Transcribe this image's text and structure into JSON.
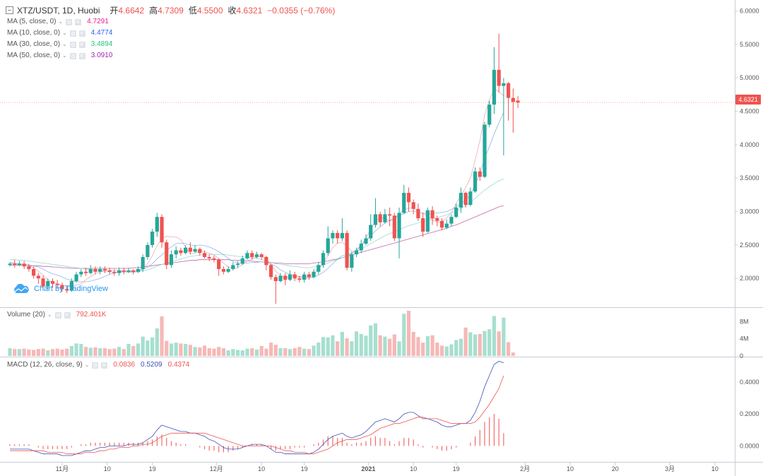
{
  "header": {
    "title": "XTZ/USDT, 1D, Huobi",
    "open_label": "开",
    "open": "4.6642",
    "high_label": "高",
    "high": "4.7309",
    "low_label": "低",
    "low": "4.5500",
    "close_label": "收",
    "close": "4.6321",
    "change": "−0.0355 (−0.76%)"
  },
  "ma_legend": [
    {
      "label": "MA (5, close, 0)",
      "value": "4.7291",
      "color": "#e91e8c"
    },
    {
      "label": "MA (10, close, 0)",
      "value": "4.4774",
      "color": "#2962ff"
    },
    {
      "label": "MA (30, close, 0)",
      "value": "3.4894",
      "color": "#26c281"
    },
    {
      "label": "MA (50, close, 0)",
      "value": "3.0910",
      "color": "#9c27b0"
    }
  ],
  "volume_legend": {
    "label": "Volume (20)",
    "value": "792.401K"
  },
  "macd_legend": {
    "label": "MACD (12, 26, close, 9)",
    "hist": "0.0836",
    "macd": "0.5209",
    "signal": "0.4374"
  },
  "brand": "Chart by TradingView",
  "last_price_tag": "4.6321",
  "colors": {
    "up": "#26a69a",
    "down": "#ef5350",
    "up_vol": "#a7dfcf",
    "down_vol": "#f6b8b6",
    "macd": "#3f51b5",
    "signal": "#ef5350",
    "last_line": "#ef5350"
  },
  "chart_data": {
    "type": "candlestick",
    "symbol": "XTZ/USDT",
    "interval": "1D",
    "exchange": "Huobi",
    "x_labels": [
      "11月",
      "10",
      "19",
      "12月",
      "10",
      "19",
      "2021",
      "10",
      "19",
      "2月",
      "10",
      "20",
      "3月",
      "10"
    ],
    "price_axis": {
      "ticks": [
        "6.0000",
        "5.5000",
        "5.0000",
        "4.5000",
        "4.0000",
        "3.5000",
        "3.0000",
        "2.5000",
        "2.0000"
      ],
      "range": [
        1.58,
        6.08
      ]
    },
    "volume_axis": {
      "ticks": [
        "8M",
        "4M",
        "0"
      ],
      "range": [
        0,
        11
      ]
    },
    "macd_axis": {
      "ticks": [
        "0.4000",
        "0.2000",
        "0.0000"
      ],
      "range": [
        -0.1,
        0.55
      ]
    },
    "candles": [
      [
        2.2,
        2.22,
        2.24,
        2.18
      ],
      [
        2.22,
        2.2,
        2.28,
        2.16
      ],
      [
        2.2,
        2.22,
        2.26,
        2.18
      ],
      [
        2.22,
        2.18,
        2.26,
        2.14
      ],
      [
        2.18,
        2.14,
        2.22,
        2.1
      ],
      [
        2.14,
        2.04,
        2.18,
        2.0
      ],
      [
        2.04,
        2.0,
        2.08,
        1.92
      ],
      [
        2.0,
        1.88,
        2.04,
        1.84
      ],
      [
        1.88,
        1.96,
        2.0,
        1.84
      ],
      [
        1.96,
        1.92,
        2.0,
        1.86
      ],
      [
        1.92,
        1.9,
        1.98,
        1.84
      ],
      [
        1.9,
        1.84,
        1.94,
        1.8
      ],
      [
        1.84,
        1.82,
        1.88,
        1.78
      ],
      [
        1.82,
        1.96,
        2.0,
        1.8
      ],
      [
        1.96,
        2.06,
        2.1,
        1.94
      ],
      [
        2.06,
        2.1,
        2.14,
        2.02
      ],
      [
        2.1,
        2.08,
        2.16,
        2.04
      ],
      [
        2.08,
        2.14,
        2.2,
        2.06
      ],
      [
        2.14,
        2.1,
        2.18,
        2.06
      ],
      [
        2.1,
        2.14,
        2.18,
        2.06
      ],
      [
        2.14,
        2.12,
        2.18,
        2.08
      ],
      [
        2.12,
        2.1,
        2.16,
        2.06
      ],
      [
        2.1,
        2.08,
        2.14,
        2.04
      ],
      [
        2.08,
        2.12,
        2.16,
        2.04
      ],
      [
        2.12,
        2.1,
        2.16,
        2.06
      ],
      [
        2.1,
        2.12,
        2.16,
        2.08
      ],
      [
        2.12,
        2.1,
        2.14,
        2.06
      ],
      [
        2.1,
        2.14,
        2.18,
        2.08
      ],
      [
        2.14,
        2.32,
        2.36,
        2.1
      ],
      [
        2.32,
        2.5,
        2.54,
        2.28
      ],
      [
        2.5,
        2.7,
        2.74,
        2.46
      ],
      [
        2.7,
        2.92,
        2.98,
        2.62
      ],
      [
        2.92,
        2.54,
        2.96,
        2.46
      ],
      [
        2.54,
        2.2,
        2.58,
        2.14
      ],
      [
        2.2,
        2.36,
        2.42,
        2.16
      ],
      [
        2.36,
        2.42,
        2.48,
        2.3
      ],
      [
        2.42,
        2.38,
        2.46,
        2.34
      ],
      [
        2.38,
        2.46,
        2.5,
        2.36
      ],
      [
        2.46,
        2.4,
        2.54,
        2.36
      ],
      [
        2.4,
        2.44,
        2.5,
        2.38
      ],
      [
        2.44,
        2.38,
        2.46,
        2.34
      ],
      [
        2.38,
        2.32,
        2.42,
        2.3
      ],
      [
        2.32,
        2.3,
        2.36,
        2.26
      ],
      [
        2.3,
        2.28,
        2.34,
        2.24
      ],
      [
        2.28,
        2.14,
        2.3,
        2.04
      ],
      [
        2.14,
        2.1,
        2.18,
        2.06
      ],
      [
        2.1,
        2.14,
        2.18,
        2.08
      ],
      [
        2.14,
        2.2,
        2.24,
        2.12
      ],
      [
        2.2,
        2.22,
        2.26,
        2.16
      ],
      [
        2.22,
        2.3,
        2.34,
        2.2
      ],
      [
        2.3,
        2.38,
        2.42,
        2.28
      ],
      [
        2.38,
        2.32,
        2.42,
        2.28
      ],
      [
        2.32,
        2.36,
        2.4,
        2.3
      ],
      [
        2.36,
        2.32,
        2.38,
        2.28
      ],
      [
        2.32,
        2.2,
        2.34,
        2.12
      ],
      [
        2.2,
        2.02,
        2.22,
        1.98
      ],
      [
        2.02,
        1.96,
        2.06,
        1.62
      ],
      [
        1.96,
        2.04,
        2.08,
        1.94
      ],
      [
        2.04,
        1.98,
        2.08,
        1.9
      ],
      [
        1.98,
        2.06,
        2.12,
        1.96
      ],
      [
        2.06,
        2.0,
        2.1,
        1.96
      ],
      [
        2.0,
        1.98,
        2.04,
        1.94
      ],
      [
        1.98,
        2.06,
        2.1,
        1.94
      ],
      [
        2.06,
        2.02,
        2.1,
        1.98
      ],
      [
        2.02,
        2.1,
        2.14,
        2.0
      ],
      [
        2.1,
        2.2,
        2.24,
        2.06
      ],
      [
        2.2,
        2.38,
        2.42,
        2.16
      ],
      [
        2.38,
        2.6,
        2.78,
        2.34
      ],
      [
        2.6,
        2.68,
        2.72,
        2.52
      ],
      [
        2.68,
        2.6,
        2.72,
        2.52
      ],
      [
        2.6,
        2.68,
        2.9,
        2.56
      ],
      [
        2.68,
        2.16,
        2.72,
        2.12
      ],
      [
        2.16,
        2.36,
        2.4,
        2.1
      ],
      [
        2.36,
        2.42,
        2.46,
        2.32
      ],
      [
        2.42,
        2.52,
        2.58,
        2.38
      ],
      [
        2.52,
        2.6,
        2.66,
        2.5
      ],
      [
        2.6,
        2.8,
        2.96,
        2.56
      ],
      [
        2.8,
        2.96,
        3.2,
        2.76
      ],
      [
        2.96,
        2.84,
        3.0,
        2.78
      ],
      [
        2.84,
        2.96,
        3.04,
        2.82
      ],
      [
        2.96,
        2.94,
        3.06,
        2.78
      ],
      [
        2.94,
        2.6,
        2.98,
        2.56
      ],
      [
        2.6,
        2.98,
        3.06,
        2.3
      ],
      [
        2.98,
        3.28,
        3.4,
        2.96
      ],
      [
        3.28,
        3.14,
        3.36,
        3.0
      ],
      [
        3.14,
        3.04,
        3.18,
        2.96
      ],
      [
        3.04,
        2.9,
        3.12,
        2.86
      ],
      [
        2.9,
        2.7,
        2.98,
        2.62
      ],
      [
        2.7,
        3.02,
        3.06,
        2.68
      ],
      [
        3.02,
        2.9,
        3.08,
        2.8
      ],
      [
        2.9,
        2.86,
        2.94,
        2.78
      ],
      [
        2.86,
        2.76,
        2.9,
        2.72
      ],
      [
        2.76,
        2.82,
        2.88,
        2.74
      ],
      [
        2.82,
        2.92,
        2.96,
        2.78
      ],
      [
        2.92,
        3.06,
        3.12,
        2.9
      ],
      [
        3.06,
        3.28,
        3.36,
        2.98
      ],
      [
        3.28,
        3.1,
        3.3,
        3.06
      ],
      [
        3.1,
        3.3,
        3.36,
        3.08
      ],
      [
        3.3,
        3.6,
        3.66,
        3.28
      ],
      [
        3.6,
        3.52,
        3.66,
        3.46
      ],
      [
        3.52,
        4.3,
        4.34,
        3.5
      ],
      [
        4.3,
        4.6,
        4.66,
        4.26
      ],
      [
        4.6,
        5.12,
        5.46,
        4.46
      ],
      [
        5.12,
        4.88,
        5.66,
        4.78
      ],
      [
        4.88,
        4.92,
        5.0,
        3.84
      ],
      [
        4.92,
        4.7,
        4.94,
        4.36
      ],
      [
        4.7,
        4.64,
        4.84,
        4.18
      ],
      [
        4.66,
        4.63,
        4.73,
        4.55
      ]
    ],
    "volume_millions": [
      1.8,
      1.6,
      1.6,
      1.7,
      1.5,
      1.4,
      1.6,
      1.7,
      1.3,
      1.6,
      1.7,
      1.5,
      1.7,
      2.3,
      2.9,
      2.8,
      2.1,
      1.9,
      2.0,
      1.8,
      1.8,
      1.6,
      1.7,
      2.1,
      1.6,
      2.8,
      2.3,
      2.9,
      4.5,
      3.6,
      4.3,
      6.4,
      9.2,
      3.5,
      2.9,
      3.1,
      2.9,
      2.8,
      2.6,
      2.1,
      2.0,
      2.4,
      1.8,
      1.7,
      2.1,
      1.8,
      1.3,
      1.6,
      1.4,
      1.3,
      1.7,
      1.8,
      1.5,
      2.3,
      1.7,
      3.1,
      2.6,
      1.8,
      1.8,
      1.6,
      1.8,
      2.1,
      1.7,
      1.6,
      2.4,
      3.1,
      4.4,
      4.3,
      4.8,
      3.4,
      5.6,
      4.1,
      3.4,
      5.7,
      5.1,
      4.7,
      7.1,
      7.6,
      4.8,
      4.5,
      4.0,
      5.0,
      3.4,
      9.8,
      10.5,
      5.6,
      4.4,
      3.1,
      4.6,
      4.8,
      3.1,
      2.4,
      2.2,
      2.7,
      3.7,
      4.0,
      6.6,
      5.5,
      5.0,
      5.1,
      5.8,
      6.2,
      9.3,
      5.7,
      8.9,
      3.2,
      0.8
    ],
    "ma5": [
      2.23,
      2.22,
      2.21,
      2.2,
      2.19,
      2.16,
      2.11,
      2.05,
      1.98,
      1.94,
      1.92,
      1.9,
      1.89,
      1.89,
      1.9,
      1.92,
      1.98,
      2.03,
      2.07,
      2.1,
      2.12,
      2.12,
      2.12,
      2.12,
      2.11,
      2.1,
      2.1,
      2.11,
      2.15,
      2.22,
      2.34,
      2.49,
      2.59,
      2.63,
      2.62,
      2.62,
      2.58,
      2.47,
      2.36,
      2.38,
      2.42,
      2.4,
      2.38,
      2.35,
      2.3,
      2.23,
      2.17,
      2.15,
      2.16,
      2.21,
      2.26,
      2.29,
      2.32,
      2.33,
      2.28,
      2.2,
      2.11,
      2.04,
      2.01,
      2.02,
      2.03,
      2.03,
      2.02,
      2.04,
      2.07,
      2.13,
      2.23,
      2.34,
      2.46,
      2.53,
      2.54,
      2.48,
      2.41,
      2.4,
      2.5,
      2.6,
      2.74,
      2.86,
      2.91,
      2.9,
      2.86,
      2.88,
      2.97,
      3.03,
      3.05,
      3.06,
      3.0,
      2.97,
      2.94,
      2.87,
      2.84,
      2.85,
      2.9,
      2.99,
      3.12,
      3.24,
      3.36,
      3.5,
      3.77,
      4.06,
      4.44,
      4.67,
      4.83,
      4.8,
      4.73
    ],
    "ma10": [
      2.24,
      2.23,
      2.22,
      2.21,
      2.2,
      2.19,
      2.17,
      2.14,
      2.1,
      2.07,
      2.05,
      2.02,
      1.99,
      1.97,
      1.95,
      1.95,
      1.95,
      1.96,
      1.98,
      2.0,
      2.03,
      2.06,
      2.08,
      2.1,
      2.11,
      2.11,
      2.11,
      2.11,
      2.13,
      2.17,
      2.22,
      2.29,
      2.35,
      2.42,
      2.47,
      2.52,
      2.53,
      2.52,
      2.5,
      2.49,
      2.5,
      2.49,
      2.47,
      2.44,
      2.4,
      2.35,
      2.3,
      2.25,
      2.23,
      2.23,
      2.23,
      2.24,
      2.24,
      2.25,
      2.24,
      2.22,
      2.18,
      2.13,
      2.09,
      2.06,
      2.04,
      2.02,
      2.01,
      2.01,
      2.02,
      2.05,
      2.09,
      2.15,
      2.22,
      2.29,
      2.34,
      2.36,
      2.38,
      2.42,
      2.51,
      2.56,
      2.64,
      2.71,
      2.77,
      2.83,
      2.87,
      2.9,
      2.94,
      2.97,
      3.0,
      3.01,
      2.99,
      2.98,
      2.97,
      2.97,
      2.98,
      2.99,
      3.0,
      3.03,
      3.07,
      3.12,
      3.17,
      3.25,
      3.4,
      3.57,
      3.8,
      3.97,
      4.16,
      4.33,
      4.48
    ],
    "ma30": [
      2.28,
      2.28,
      2.27,
      2.27,
      2.26,
      2.25,
      2.24,
      2.23,
      2.22,
      2.21,
      2.2,
      2.19,
      2.18,
      2.17,
      2.16,
      2.15,
      2.14,
      2.13,
      2.12,
      2.11,
      2.1,
      2.1,
      2.09,
      2.09,
      2.09,
      2.09,
      2.09,
      2.1,
      2.11,
      2.13,
      2.15,
      2.18,
      2.21,
      2.23,
      2.25,
      2.27,
      2.29,
      2.31,
      2.33,
      2.34,
      2.35,
      2.36,
      2.36,
      2.36,
      2.36,
      2.36,
      2.35,
      2.34,
      2.33,
      2.32,
      2.32,
      2.31,
      2.3,
      2.28,
      2.26,
      2.24,
      2.22,
      2.21,
      2.2,
      2.19,
      2.18,
      2.17,
      2.16,
      2.16,
      2.17,
      2.18,
      2.2,
      2.23,
      2.26,
      2.28,
      2.31,
      2.34,
      2.37,
      2.4,
      2.44,
      2.48,
      2.52,
      2.56,
      2.6,
      2.64,
      2.67,
      2.7,
      2.73,
      2.76,
      2.79,
      2.81,
      2.83,
      2.85,
      2.87,
      2.89,
      2.91,
      2.93,
      2.95,
      2.98,
      3.01,
      3.05,
      3.09,
      3.14,
      3.2,
      3.26,
      3.32,
      3.37,
      3.42,
      3.46,
      3.49
    ],
    "ma50": [
      2.2,
      2.2,
      2.2,
      2.2,
      2.19,
      2.19,
      2.19,
      2.18,
      2.18,
      2.17,
      2.17,
      2.16,
      2.16,
      2.15,
      2.15,
      2.15,
      2.15,
      2.15,
      2.15,
      2.15,
      2.15,
      2.15,
      2.15,
      2.15,
      2.15,
      2.15,
      2.16,
      2.16,
      2.17,
      2.18,
      2.19,
      2.2,
      2.21,
      2.22,
      2.23,
      2.24,
      2.25,
      2.26,
      2.27,
      2.27,
      2.28,
      2.28,
      2.28,
      2.28,
      2.28,
      2.28,
      2.28,
      2.27,
      2.27,
      2.27,
      2.26,
      2.26,
      2.25,
      2.25,
      2.24,
      2.24,
      2.23,
      2.23,
      2.22,
      2.22,
      2.22,
      2.22,
      2.22,
      2.22,
      2.23,
      2.24,
      2.25,
      2.26,
      2.28,
      2.29,
      2.31,
      2.33,
      2.35,
      2.37,
      2.39,
      2.41,
      2.43,
      2.45,
      2.47,
      2.49,
      2.51,
      2.53,
      2.55,
      2.57,
      2.59,
      2.61,
      2.63,
      2.65,
      2.67,
      2.69,
      2.71,
      2.73,
      2.75,
      2.78,
      2.8,
      2.83,
      2.86,
      2.89,
      2.92,
      2.95,
      2.98,
      3.01,
      3.04,
      3.07,
      3.09
    ],
    "macd_line": [
      -0.02,
      -0.02,
      -0.02,
      -0.02,
      -0.02,
      -0.03,
      -0.04,
      -0.05,
      -0.05,
      -0.05,
      -0.05,
      -0.06,
      -0.06,
      -0.06,
      -0.05,
      -0.04,
      -0.03,
      -0.03,
      -0.02,
      -0.01,
      -0.01,
      0.0,
      0.0,
      0.0,
      0.0,
      0.01,
      0.01,
      0.01,
      0.02,
      0.04,
      0.06,
      0.1,
      0.13,
      0.12,
      0.11,
      0.1,
      0.09,
      0.09,
      0.08,
      0.08,
      0.07,
      0.06,
      0.04,
      0.03,
      0.01,
      -0.01,
      -0.02,
      -0.02,
      -0.02,
      -0.01,
      0.0,
      0.01,
      0.01,
      0.01,
      0.0,
      -0.02,
      -0.04,
      -0.04,
      -0.05,
      -0.05,
      -0.05,
      -0.05,
      -0.05,
      -0.05,
      -0.04,
      -0.02,
      0.01,
      0.04,
      0.06,
      0.07,
      0.08,
      0.06,
      0.05,
      0.06,
      0.07,
      0.09,
      0.12,
      0.15,
      0.16,
      0.17,
      0.16,
      0.15,
      0.17,
      0.2,
      0.21,
      0.21,
      0.19,
      0.17,
      0.17,
      0.16,
      0.15,
      0.13,
      0.12,
      0.12,
      0.13,
      0.14,
      0.14,
      0.16,
      0.21,
      0.28,
      0.37,
      0.44,
      0.51,
      0.53,
      0.52
    ],
    "signal_line": [
      -0.03,
      -0.03,
      -0.03,
      -0.03,
      -0.03,
      -0.03,
      -0.03,
      -0.03,
      -0.04,
      -0.04,
      -0.04,
      -0.04,
      -0.05,
      -0.05,
      -0.05,
      -0.05,
      -0.04,
      -0.04,
      -0.04,
      -0.03,
      -0.03,
      -0.02,
      -0.02,
      -0.01,
      -0.01,
      -0.01,
      0.0,
      0.0,
      0.01,
      0.01,
      0.02,
      0.04,
      0.06,
      0.07,
      0.08,
      0.08,
      0.08,
      0.08,
      0.08,
      0.08,
      0.08,
      0.08,
      0.07,
      0.06,
      0.05,
      0.04,
      0.03,
      0.02,
      0.01,
      0.0,
      0.0,
      0.0,
      0.0,
      0.0,
      0.0,
      0.0,
      -0.01,
      -0.02,
      -0.03,
      -0.03,
      -0.04,
      -0.04,
      -0.04,
      -0.05,
      -0.05,
      -0.04,
      -0.03,
      -0.02,
      0.0,
      0.02,
      0.03,
      0.04,
      0.04,
      0.04,
      0.05,
      0.06,
      0.07,
      0.09,
      0.11,
      0.12,
      0.13,
      0.14,
      0.14,
      0.15,
      0.16,
      0.17,
      0.18,
      0.18,
      0.17,
      0.17,
      0.17,
      0.16,
      0.15,
      0.14,
      0.14,
      0.14,
      0.14,
      0.14,
      0.15,
      0.18,
      0.22,
      0.26,
      0.31,
      0.36,
      0.44
    ],
    "macd_hist": [
      0.01,
      0.01,
      0.01,
      0.01,
      0.01,
      0.0,
      -0.01,
      -0.02,
      -0.02,
      -0.02,
      -0.02,
      -0.02,
      -0.02,
      -0.01,
      0.0,
      0.01,
      0.01,
      0.02,
      0.02,
      0.02,
      0.02,
      0.02,
      0.02,
      0.02,
      0.02,
      0.02,
      0.02,
      0.02,
      0.02,
      0.03,
      0.04,
      0.06,
      0.07,
      0.05,
      0.03,
      0.02,
      0.01,
      0.01,
      0.0,
      0.0,
      -0.01,
      -0.02,
      -0.03,
      -0.03,
      -0.04,
      -0.04,
      -0.04,
      -0.03,
      -0.02,
      -0.01,
      0.0,
      0.01,
      0.01,
      0.01,
      0.0,
      -0.02,
      -0.03,
      -0.02,
      -0.02,
      -0.02,
      -0.01,
      -0.01,
      -0.01,
      0.0,
      0.01,
      0.02,
      0.04,
      0.06,
      0.06,
      0.05,
      0.05,
      0.02,
      0.01,
      0.02,
      0.02,
      0.03,
      0.05,
      0.06,
      0.05,
      0.05,
      0.03,
      0.01,
      0.03,
      0.05,
      0.05,
      0.04,
      0.01,
      -0.01,
      0.0,
      -0.01,
      -0.02,
      -0.03,
      -0.03,
      -0.02,
      -0.01,
      0.0,
      0.0,
      0.02,
      0.06,
      0.1,
      0.15,
      0.18,
      0.2,
      0.17,
      0.08
    ],
    "last_price": 4.6321
  }
}
